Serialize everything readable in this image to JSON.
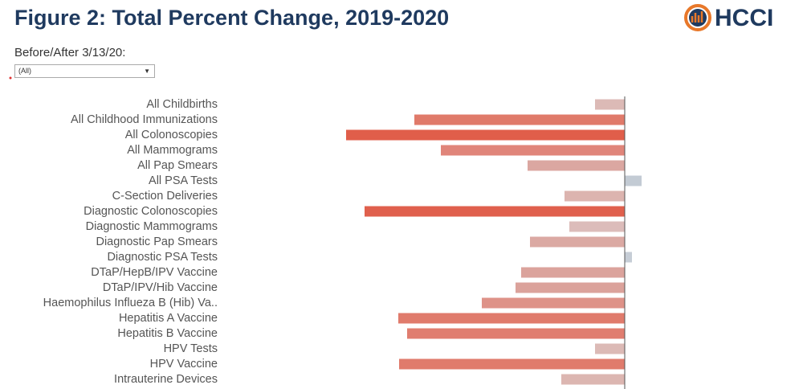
{
  "chart_data": {
    "type": "bar",
    "orientation": "horizontal",
    "title": "Figure 2: Total Percent Change, 2019-2020",
    "categories": [
      "All Childbirths",
      "All Childhood Immunizations",
      "All Colonoscopies",
      "All Mammograms",
      "All Pap Smears",
      "All PSA Tests",
      "C-Section Deliveries",
      "Diagnostic Colonoscopies",
      "Diagnostic Mammograms",
      "Diagnostic Pap Smears",
      "Diagnostic PSA Tests",
      "DTaP/HepB/IPV Vaccine",
      "DTaP/IPV/Hib Vaccine",
      "Haemophilus Influeza B (Hib) Va..",
      "Hepatitis A Vaccine",
      "Hepatitis B Vaccine",
      "HPV Tests",
      "HPV Vaccine",
      "Intrauterine Devices"
    ],
    "values": [
      -3.7,
      -26.2,
      -34.7,
      -22.9,
      -12.1,
      2.1,
      -7.5,
      -32.4,
      -6.9,
      -11.8,
      0.9,
      -12.9,
      -13.6,
      -17.8,
      -28.2,
      -27.1,
      -3.7,
      -28.1,
      -7.9
    ],
    "colors": [
      "#dcbab6",
      "#e07a6a",
      "#e05e4a",
      "#e0857a",
      "#dba7a1",
      "#c3cbd4",
      "#dcb4af",
      "#e0604d",
      "#dcbcba",
      "#dba9a3",
      "#c6cdd6",
      "#dba39c",
      "#dba29b",
      "#de9288",
      "#e07b6c",
      "#e07d6f",
      "#dcbab6",
      "#e07b6c",
      "#dcb6b1"
    ],
    "xlim": [
      -50,
      21
    ]
  },
  "filter": {
    "label": "Before/After 3/13/20:",
    "value": "(All)"
  },
  "logo": "HCCI"
}
